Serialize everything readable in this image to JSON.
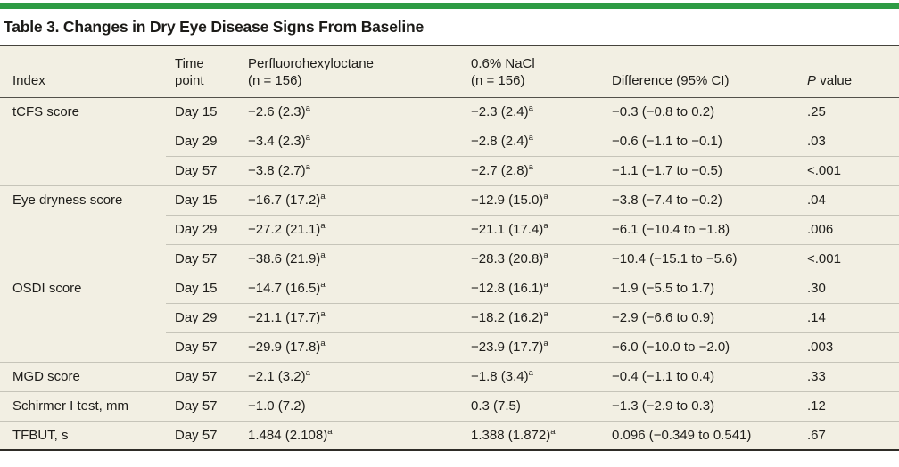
{
  "colors": {
    "accent_green": "#2e9b44",
    "table_background": "#f2efe3",
    "row_separator": "#c6c4b9",
    "dark_rule": "#45433c",
    "text": "#1f1e1b"
  },
  "title": "Table 3. Changes in Dry Eye Disease Signs From Baseline",
  "table": {
    "columns": [
      {
        "line1": "",
        "line2": "Index"
      },
      {
        "line1": "Time",
        "line2": "point"
      },
      {
        "line1": "Perfluorohexyloctane",
        "line2": "(n = 156)"
      },
      {
        "line1": "0.6% NaCl",
        "line2": "(n = 156)"
      },
      {
        "line1": "",
        "line2": "Difference (95% CI)"
      },
      {
        "line1": "",
        "line2_italic": "P",
        "line2_rest": "value"
      }
    ],
    "rows": [
      {
        "index": "tCFS score",
        "time": "Day 15",
        "pfhex": "−2.6 (2.3)",
        "pfhex_sup": "a",
        "nacl": "−2.3 (2.4)",
        "nacl_sup": "a",
        "diff": "−0.3 (−0.8 to 0.2)",
        "p": ".25"
      },
      {
        "index": "",
        "time": "Day 29",
        "pfhex": "−3.4 (2.3)",
        "pfhex_sup": "a",
        "nacl": "−2.8 (2.4)",
        "nacl_sup": "a",
        "diff": "−0.6 (−1.1 to −0.1)",
        "p": ".03"
      },
      {
        "index": "",
        "time": "Day 57",
        "pfhex": "−3.8 (2.7)",
        "pfhex_sup": "a",
        "nacl": "−2.7 (2.8)",
        "nacl_sup": "a",
        "diff": "−1.1 (−1.7 to −0.5)",
        "p": "<.001"
      },
      {
        "index": "Eye dryness score",
        "time": "Day 15",
        "pfhex": "−16.7 (17.2)",
        "pfhex_sup": "a",
        "nacl": "−12.9 (15.0)",
        "nacl_sup": "a",
        "diff": "−3.8 (−7.4 to −0.2)",
        "p": ".04"
      },
      {
        "index": "",
        "time": "Day 29",
        "pfhex": "−27.2 (21.1)",
        "pfhex_sup": "a",
        "nacl": "−21.1 (17.4)",
        "nacl_sup": "a",
        "diff": "−6.1 (−10.4 to −1.8)",
        "p": ".006"
      },
      {
        "index": "",
        "time": "Day 57",
        "pfhex": "−38.6 (21.9)",
        "pfhex_sup": "a",
        "nacl": "−28.3 (20.8)",
        "nacl_sup": "a",
        "diff": "−10.4 (−15.1 to −5.6)",
        "p": "<.001"
      },
      {
        "index": "OSDI score",
        "time": "Day 15",
        "pfhex": "−14.7 (16.5)",
        "pfhex_sup": "a",
        "nacl": "−12.8 (16.1)",
        "nacl_sup": "a",
        "diff": "−1.9 (−5.5 to 1.7)",
        "p": ".30"
      },
      {
        "index": "",
        "time": "Day 29",
        "pfhex": "−21.1 (17.7)",
        "pfhex_sup": "a",
        "nacl": "−18.2 (16.2)",
        "nacl_sup": "a",
        "diff": "−2.9 (−6.6 to 0.9)",
        "p": ".14"
      },
      {
        "index": "",
        "time": "Day 57",
        "pfhex": "−29.9 (17.8)",
        "pfhex_sup": "a",
        "nacl": "−23.9 (17.7)",
        "nacl_sup": "a",
        "diff": "−6.0 (−10.0 to −2.0)",
        "p": ".003"
      },
      {
        "index": "MGD score",
        "time": "Day 57",
        "pfhex": "−2.1 (3.2)",
        "pfhex_sup": "a",
        "nacl": "−1.8 (3.4)",
        "nacl_sup": "a",
        "diff": "−0.4 (−1.1 to 0.4)",
        "p": ".33"
      },
      {
        "index": "Schirmer I test, mm",
        "time": "Day 57",
        "pfhex": "−1.0 (7.2)",
        "pfhex_sup": "",
        "nacl": "0.3 (7.5)",
        "nacl_sup": "",
        "diff": "−1.3 (−2.9 to 0.3)",
        "p": ".12"
      },
      {
        "index": "TFBUT, s",
        "time": "Day 57",
        "pfhex": "1.484 (2.108)",
        "pfhex_sup": "a",
        "nacl": "1.388 (1.872)",
        "nacl_sup": "a",
        "diff": "0.096 (−0.349 to 0.541)",
        "p": ".67"
      }
    ]
  }
}
